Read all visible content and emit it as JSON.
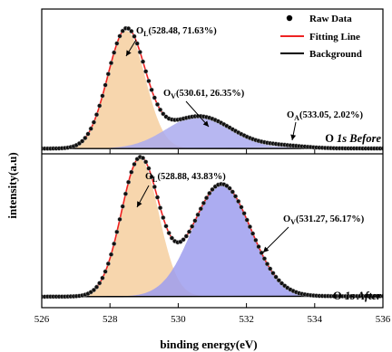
{
  "chart_data": {
    "type": "line",
    "xlabel": "binding energy(eV)",
    "ylabel": "intensity(a.u)",
    "xlim": [
      526,
      536
    ],
    "x_ticks": [
      "526",
      "528",
      "530",
      "532",
      "534",
      "536"
    ],
    "legend": {
      "placement": "top-right",
      "entries": [
        {
          "label": "Raw Data",
          "marker": "dot",
          "color": "#000000"
        },
        {
          "label": "Fitting Line",
          "marker": "line",
          "color": "#ee2222"
        },
        {
          "label": "Background",
          "marker": "line",
          "color": "#000000"
        }
      ]
    },
    "panels": [
      {
        "label_main": "O ",
        "label_italic": "1s Before",
        "background_level": 0.9,
        "peaks": [
          {
            "label_main": "O",
            "label_sub": "L",
            "label_values": "(528.48, 71.63%)",
            "center": 528.48,
            "height": 31,
            "sigma": 0.55,
            "color": "#f6cf9f"
          },
          {
            "label_main": "O",
            "label_sub": "V",
            "label_values": "(530.61, 26.35%)",
            "center": 530.61,
            "height": 8.5,
            "sigma": 0.95,
            "color": "#aaaaee"
          },
          {
            "label_main": "O",
            "label_sub": "A",
            "label_values": "(533.05, 2.02%)",
            "center": 533.05,
            "height": 0.7,
            "sigma": 0.7,
            "color": "#c8c8ee"
          }
        ]
      },
      {
        "label_main": "O ",
        "label_italic": "1s After",
        "background_level": 0.9,
        "peaks": [
          {
            "label_main": "O",
            "label_sub": "L",
            "label_values": "(528.88, 43.83%)",
            "center": 528.88,
            "height": 33,
            "sigma": 0.55,
            "color": "#f6cf9f"
          },
          {
            "label_main": "O",
            "label_sub": "V",
            "label_values": "(531.27, 56.17%)",
            "center": 531.27,
            "height": 27,
            "sigma": 0.85,
            "color": "#9d9dee"
          }
        ]
      }
    ]
  }
}
